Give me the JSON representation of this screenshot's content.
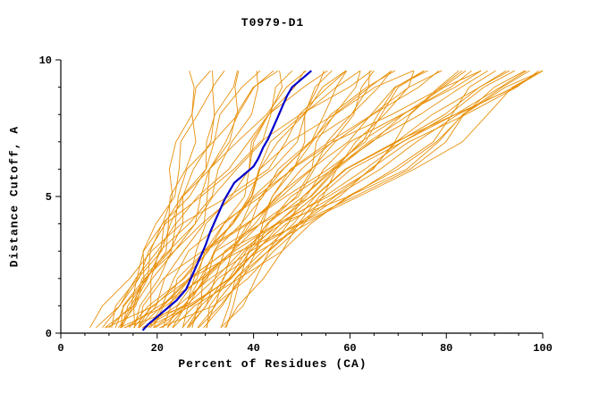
{
  "chart_data": {
    "type": "line",
    "title": "T0979-D1",
    "xlabel": "Percent of Residues (CA)",
    "ylabel": "Distance Cutoff, A",
    "xlim": [
      0,
      100
    ],
    "ylim": [
      0,
      10
    ],
    "x_major_ticks": [
      0,
      20,
      40,
      60,
      80,
      100
    ],
    "y_major_ticks": [
      0,
      5,
      10
    ],
    "x_minor_step": 5,
    "y_minor_step": 1,
    "grid": false,
    "legend": "none",
    "colors": {
      "predictions": "#E8900A",
      "highlight": "#0000CC",
      "axis": "#000000",
      "background": "#FFFFFF"
    },
    "jitter_amp": 1.4,
    "y_levels": [
      0.2,
      1,
      2,
      3,
      4,
      5,
      6,
      7,
      8,
      9,
      9.6
    ],
    "shapes": {
      "A": [
        0,
        0.18,
        0.34,
        0.47,
        0.58,
        0.67,
        0.75,
        0.82,
        0.89,
        0.95,
        1
      ],
      "B": [
        0,
        0.04,
        0.09,
        0.16,
        0.24,
        0.34,
        0.46,
        0.6,
        0.75,
        0.9,
        1
      ],
      "C": [
        0,
        0.08,
        0.18,
        0.28,
        0.38,
        0.49,
        0.6,
        0.7,
        0.8,
        0.91,
        1
      ],
      "D": [
        0,
        0.05,
        0.12,
        0.22,
        0.38,
        0.55,
        0.68,
        0.78,
        0.86,
        0.94,
        1
      ],
      "E": [
        0,
        0.15,
        0.28,
        0.36,
        0.42,
        0.48,
        0.55,
        0.64,
        0.76,
        0.9,
        1
      ]
    },
    "prediction_curves": [
      {
        "s": 10,
        "e": 28,
        "sh": "A"
      },
      {
        "s": 12,
        "e": 30,
        "sh": "A"
      },
      {
        "s": 13,
        "e": 32,
        "sh": "C"
      },
      {
        "s": 11,
        "e": 34,
        "sh": "A"
      },
      {
        "s": 14,
        "e": 36,
        "sh": "D"
      },
      {
        "s": 15,
        "e": 38,
        "sh": "A"
      },
      {
        "s": 12,
        "e": 40,
        "sh": "C"
      },
      {
        "s": 16,
        "e": 42,
        "sh": "D"
      },
      {
        "s": 10,
        "e": 44,
        "sh": "C"
      },
      {
        "s": 18,
        "e": 46,
        "sh": "A"
      },
      {
        "s": 14,
        "e": 48,
        "sh": "D"
      },
      {
        "s": 20,
        "e": 50,
        "sh": "C"
      },
      {
        "s": 8,
        "e": 52,
        "sh": "E"
      },
      {
        "s": 16,
        "e": 54,
        "sh": "B"
      },
      {
        "s": 22,
        "e": 56,
        "sh": "C"
      },
      {
        "s": 12,
        "e": 58,
        "sh": "D"
      },
      {
        "s": 18,
        "e": 60,
        "sh": "E"
      },
      {
        "s": 24,
        "e": 62,
        "sh": "C"
      },
      {
        "s": 10,
        "e": 64,
        "sh": "B"
      },
      {
        "s": 20,
        "e": 66,
        "sh": "D"
      },
      {
        "s": 15,
        "e": 68,
        "sh": "C"
      },
      {
        "s": 26,
        "e": 70,
        "sh": "B"
      },
      {
        "s": 13,
        "e": 72,
        "sh": "E"
      },
      {
        "s": 22,
        "e": 74,
        "sh": "D"
      },
      {
        "s": 17,
        "e": 76,
        "sh": "C"
      },
      {
        "s": 28,
        "e": 78,
        "sh": "B"
      },
      {
        "s": 11,
        "e": 80,
        "sh": "E"
      },
      {
        "s": 24,
        "e": 82,
        "sh": "D"
      },
      {
        "s": 19,
        "e": 84,
        "sh": "C"
      },
      {
        "s": 30,
        "e": 86,
        "sh": "B"
      },
      {
        "s": 14,
        "e": 88,
        "sh": "E"
      },
      {
        "s": 26,
        "e": 90,
        "sh": "D"
      },
      {
        "s": 21,
        "e": 92,
        "sh": "C"
      },
      {
        "s": 32,
        "e": 94,
        "sh": "B"
      },
      {
        "s": 16,
        "e": 96,
        "sh": "D"
      },
      {
        "s": 28,
        "e": 98,
        "sh": "B"
      },
      {
        "s": 23,
        "e": 100,
        "sh": "C"
      },
      {
        "s": 34,
        "e": 100,
        "sh": "B"
      },
      {
        "s": 18,
        "e": 100,
        "sh": "D"
      },
      {
        "s": 30,
        "e": 100,
        "sh": "B"
      },
      {
        "s": 6,
        "e": 45,
        "sh": "E"
      },
      {
        "s": 7,
        "e": 58,
        "sh": "D"
      },
      {
        "s": 9,
        "e": 70,
        "sh": "E"
      },
      {
        "s": 25,
        "e": 55,
        "sh": "A"
      },
      {
        "s": 27,
        "e": 65,
        "sh": "D"
      },
      {
        "s": 29,
        "e": 75,
        "sh": "C"
      },
      {
        "s": 31,
        "e": 85,
        "sh": "B"
      },
      {
        "s": 33,
        "e": 95,
        "sh": "B"
      },
      {
        "s": 35,
        "e": 100,
        "sh": "B"
      },
      {
        "s": 20,
        "e": 90,
        "sh": "E"
      },
      {
        "s": 22,
        "e": 95,
        "sh": "D"
      },
      {
        "s": 17,
        "e": 85,
        "sh": "B"
      },
      {
        "s": 15,
        "e": 75,
        "sh": "D"
      },
      {
        "s": 19,
        "e": 62,
        "sh": "A"
      }
    ],
    "highlight_curve": [
      [
        17,
        0.1
      ],
      [
        18,
        0.3
      ],
      [
        20,
        0.6
      ],
      [
        22,
        0.9
      ],
      [
        24,
        1.2
      ],
      [
        26,
        1.6
      ],
      [
        27,
        2.0
      ],
      [
        28,
        2.4
      ],
      [
        29,
        2.8
      ],
      [
        30,
        3.2
      ],
      [
        31,
        3.7
      ],
      [
        32,
        4.1
      ],
      [
        33,
        4.5
      ],
      [
        34,
        4.9
      ],
      [
        35,
        5.2
      ],
      [
        36,
        5.5
      ],
      [
        38,
        5.8
      ],
      [
        40,
        6.1
      ],
      [
        41,
        6.4
      ],
      [
        42,
        6.8
      ],
      [
        43,
        7.1
      ],
      [
        44,
        7.5
      ],
      [
        45,
        7.9
      ],
      [
        46,
        8.3
      ],
      [
        47,
        8.7
      ],
      [
        48,
        9.0
      ],
      [
        50,
        9.3
      ],
      [
        52,
        9.6
      ]
    ]
  }
}
